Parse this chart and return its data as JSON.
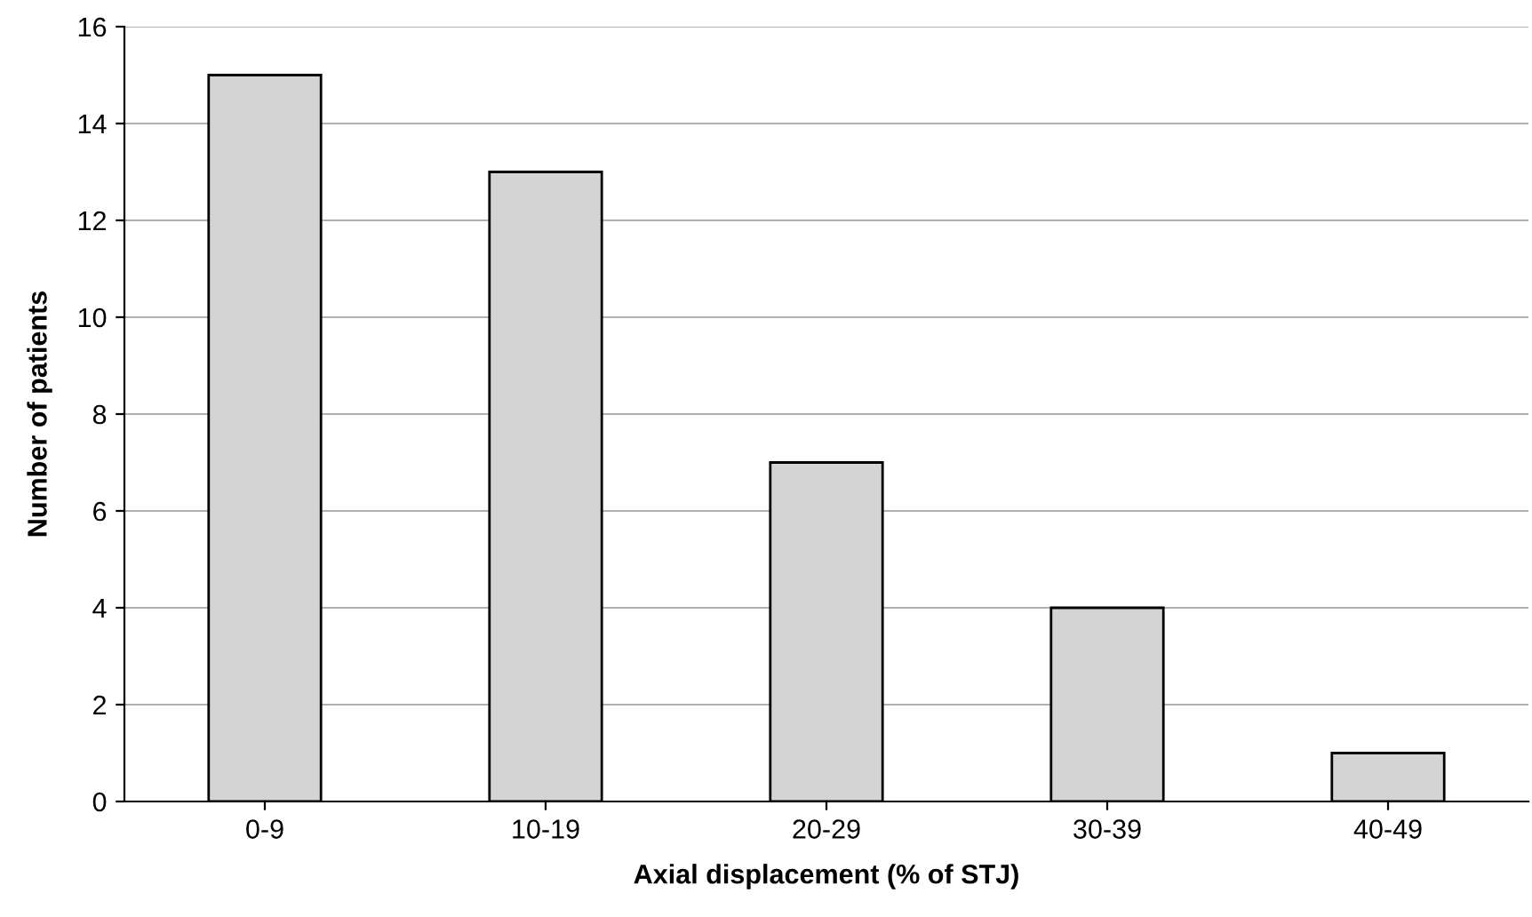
{
  "chart_data": {
    "type": "bar",
    "xlabel": "Axial displacement (% of STJ)",
    "ylabel": "Number of patients",
    "categories": [
      "0-9",
      "10-19",
      "20-29",
      "30-39",
      "40-49"
    ],
    "values": [
      15,
      13,
      7,
      4,
      1
    ],
    "color": "#d4d4d4",
    "ylim": [
      0,
      16
    ],
    "yticks": [
      0,
      2,
      4,
      6,
      8,
      10,
      12,
      14,
      16
    ],
    "grid": "y"
  }
}
